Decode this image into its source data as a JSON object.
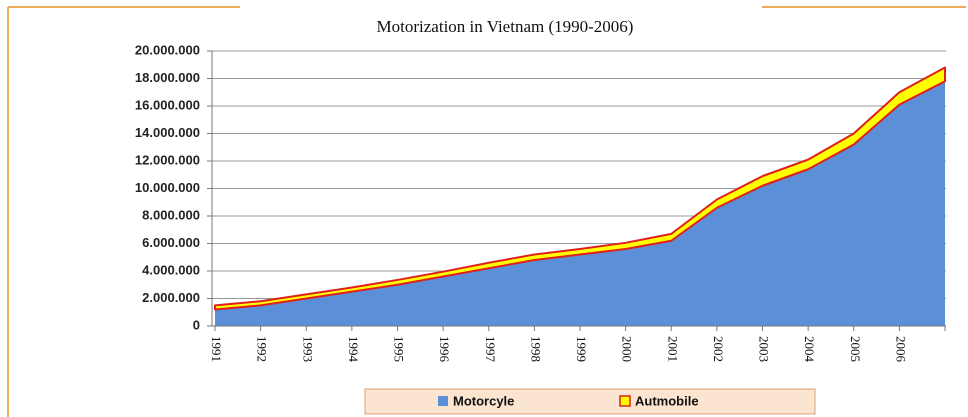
{
  "chart_data": {
    "type": "area",
    "stacked": true,
    "title": "Motorization in Vietnam (1990-2006)",
    "categories": [
      "1991",
      "1992",
      "1993",
      "1994",
      "1995",
      "1996",
      "1997",
      "1998",
      "1999",
      "2000",
      "2001",
      "2002",
      "2003",
      "2004",
      "2005",
      "2006",
      null
    ],
    "series": [
      {
        "name": "Motorcyle",
        "color": "#5b8fd8",
        "values": [
          1200000,
          1500000,
          2000000,
          2500000,
          3000000,
          3600000,
          4200000,
          4800000,
          5200000,
          5600000,
          6200000,
          8600000,
          10200000,
          11400000,
          13200000,
          16100000,
          17800000
        ]
      },
      {
        "name": "Autmobile",
        "color": "#ffff00",
        "stroke": "#e0201a",
        "values": [
          300000,
          300000,
          300000,
          300000,
          350000,
          350000,
          400000,
          400000,
          400000,
          450000,
          500000,
          600000,
          700000,
          700000,
          800000,
          900000,
          1000000
        ]
      }
    ],
    "ylim": [
      0,
      20000000
    ],
    "yticks": [
      0,
      {
        "value": 2000000,
        "label": "2.000.000"
      },
      {
        "value": 4000000,
        "label": "4.000.000"
      },
      {
        "value": 6000000,
        "label": "6.000.000"
      },
      {
        "value": 8000000,
        "label": "8.000.000"
      },
      {
        "value": 10000000,
        "label": "10.000.000"
      },
      {
        "value": 12000000,
        "label": "12.000.000"
      },
      {
        "value": 14000000,
        "label": "14.000.000"
      },
      {
        "value": 16000000,
        "label": "16.000.000"
      },
      {
        "value": 18000000,
        "label": "18.000.000"
      },
      {
        "value": 20000000,
        "label": "20.000.000"
      }
    ],
    "grid": true,
    "legend": "bottom"
  }
}
